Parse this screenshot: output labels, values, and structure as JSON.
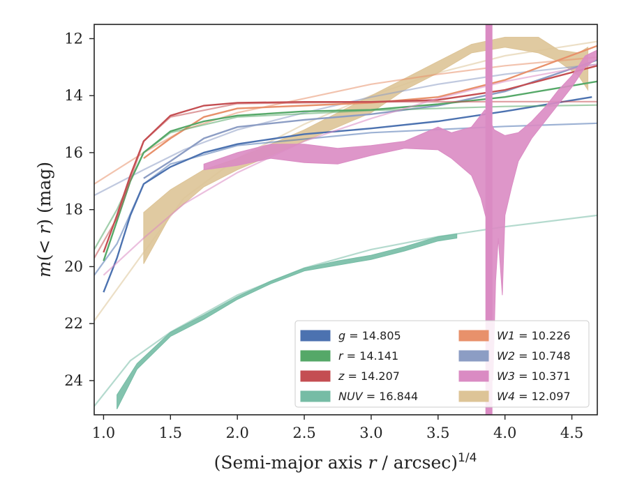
{
  "chart_data": {
    "type": "line",
    "xlabel": "(Semi-major axis r / arcsec)^{1/4}",
    "xlabel_parts": {
      "main": "(Semi-major axis ",
      "var": "r",
      "rest": " / arcsec)",
      "sup": "1/4"
    },
    "ylabel": "m(<r) (mag)",
    "ylabel_parts": {
      "var": "m",
      "mid": "(< ",
      "var2": "r",
      "rest": ") (mag)"
    },
    "xlim": [
      0.93,
      4.69
    ],
    "ylim": [
      25.2,
      11.5
    ],
    "y_inverted": true,
    "x_ticks": [
      1.0,
      1.5,
      2.0,
      2.5,
      3.0,
      3.5,
      4.0,
      4.5
    ],
    "x_tick_labels": [
      "1.0",
      "1.5",
      "2.0",
      "2.5",
      "3.0",
      "3.5",
      "4.0",
      "4.5"
    ],
    "y_ticks": [
      12,
      14,
      16,
      18,
      20,
      22,
      24
    ],
    "y_tick_labels": [
      "12",
      "14",
      "16",
      "18",
      "20",
      "22",
      "24"
    ],
    "grid": false,
    "legend_placement": "bottom-right",
    "legend": [
      {
        "band": "g",
        "value": "14.805",
        "color": "#4c72b0"
      },
      {
        "band": "W1",
        "value": "10.226",
        "color": "#e8916b"
      },
      {
        "band": "r",
        "value": "14.141",
        "color": "#55a868"
      },
      {
        "band": "W2",
        "value": "10.748",
        "color": "#8c9dc4"
      },
      {
        "band": "z",
        "value": "14.207",
        "color": "#c44e52"
      },
      {
        "band": "W3",
        "value": "10.371",
        "color": "#da8bc3"
      },
      {
        "band": "NUV",
        "value": "16.844",
        "color": "#76bca5"
      },
      {
        "band": "W4",
        "value": "12.097",
        "color": "#ddc497"
      }
    ],
    "series": [
      {
        "name": "g = 14.805",
        "color": "#4c72b0",
        "data": [
          [
            1.0,
            20.9
          ],
          [
            1.1,
            19.7
          ],
          [
            1.2,
            18.2
          ],
          [
            1.3,
            17.1
          ],
          [
            1.5,
            16.5
          ],
          [
            1.75,
            16.0
          ],
          [
            2.0,
            15.7
          ],
          [
            2.5,
            15.35
          ],
          [
            3.0,
            15.15
          ],
          [
            3.5,
            14.9
          ],
          [
            4.0,
            14.55
          ],
          [
            4.65,
            14.05
          ]
        ],
        "model": [
          [
            0.93,
            20.3
          ],
          [
            1.1,
            19.2
          ],
          [
            1.3,
            17.1
          ],
          [
            1.5,
            16.4
          ],
          [
            2.0,
            15.75
          ],
          [
            3.0,
            15.3
          ],
          [
            4.0,
            15.08
          ],
          [
            4.69,
            14.97
          ]
        ]
      },
      {
        "name": "r = 14.141",
        "color": "#55a868",
        "data": [
          [
            1.0,
            19.8
          ],
          [
            1.1,
            18.4
          ],
          [
            1.2,
            17.0
          ],
          [
            1.3,
            16.0
          ],
          [
            1.5,
            15.25
          ],
          [
            1.75,
            14.9
          ],
          [
            2.0,
            14.7
          ],
          [
            2.5,
            14.55
          ],
          [
            3.0,
            14.5
          ],
          [
            3.5,
            14.3
          ],
          [
            4.0,
            14.05
          ],
          [
            4.69,
            13.5
          ]
        ],
        "model": [
          [
            0.93,
            19.4
          ],
          [
            1.1,
            18.0
          ],
          [
            1.3,
            16.0
          ],
          [
            1.5,
            15.3
          ],
          [
            2.0,
            14.75
          ],
          [
            3.0,
            14.52
          ],
          [
            4.0,
            14.38
          ],
          [
            4.69,
            14.33
          ]
        ]
      },
      {
        "name": "z = 14.207",
        "color": "#c44e52",
        "data": [
          [
            1.0,
            19.5
          ],
          [
            1.1,
            18.2
          ],
          [
            1.2,
            16.8
          ],
          [
            1.3,
            15.6
          ],
          [
            1.5,
            14.7
          ],
          [
            1.75,
            14.35
          ],
          [
            2.0,
            14.25
          ],
          [
            2.5,
            14.22
          ],
          [
            3.0,
            14.22
          ],
          [
            3.5,
            14.15
          ],
          [
            4.0,
            13.8
          ],
          [
            4.69,
            12.95
          ]
        ],
        "model": [
          [
            0.93,
            19.7
          ],
          [
            1.1,
            18.3
          ],
          [
            1.3,
            15.6
          ],
          [
            1.5,
            14.75
          ],
          [
            2.0,
            14.28
          ],
          [
            3.0,
            14.22
          ],
          [
            4.0,
            14.21
          ],
          [
            4.69,
            14.21
          ]
        ]
      },
      {
        "name": "W1 = 10.226",
        "color": "#e8916b",
        "data": [
          [
            1.3,
            16.2
          ],
          [
            1.5,
            15.5
          ],
          [
            1.75,
            14.75
          ],
          [
            2.0,
            14.45
          ],
          [
            2.5,
            14.35
          ],
          [
            3.0,
            14.25
          ],
          [
            3.5,
            14.05
          ],
          [
            4.0,
            13.45
          ],
          [
            4.69,
            12.25
          ]
        ],
        "model": [
          [
            0.93,
            17.1
          ],
          [
            1.3,
            16.0
          ],
          [
            1.6,
            15.2
          ],
          [
            2.0,
            14.6
          ],
          [
            2.5,
            14.1
          ],
          [
            3.0,
            13.6
          ],
          [
            3.5,
            13.25
          ],
          [
            4.0,
            12.95
          ],
          [
            4.69,
            12.65
          ]
        ]
      },
      {
        "name": "W2 = 10.748",
        "color": "#8c9dc4",
        "data": [
          [
            1.3,
            16.9
          ],
          [
            1.5,
            16.3
          ],
          [
            1.75,
            15.5
          ],
          [
            2.0,
            15.1
          ],
          [
            2.5,
            14.85
          ],
          [
            3.0,
            14.65
          ],
          [
            3.5,
            14.35
          ],
          [
            4.0,
            13.85
          ],
          [
            4.69,
            12.75
          ]
        ],
        "model": [
          [
            0.93,
            17.5
          ],
          [
            1.3,
            16.6
          ],
          [
            1.6,
            15.9
          ],
          [
            2.0,
            15.2
          ],
          [
            2.5,
            14.6
          ],
          [
            3.0,
            14.05
          ],
          [
            3.5,
            13.6
          ],
          [
            4.0,
            13.25
          ],
          [
            4.69,
            12.9
          ]
        ]
      },
      {
        "name": "W3 = 10.371",
        "color": "#da8bc3",
        "band_upper": [
          [
            1.75,
            16.4
          ],
          [
            2.0,
            16.0
          ],
          [
            2.25,
            15.7
          ],
          [
            2.5,
            15.7
          ],
          [
            2.75,
            15.85
          ],
          [
            3.0,
            15.75
          ],
          [
            3.25,
            15.6
          ],
          [
            3.5,
            15.1
          ],
          [
            3.6,
            15.3
          ],
          [
            3.75,
            15.1
          ],
          [
            3.85,
            14.5
          ],
          [
            3.88,
            14.8
          ],
          [
            3.92,
            15.2
          ],
          [
            4.0,
            15.4
          ],
          [
            4.1,
            15.3
          ],
          [
            4.2,
            14.9
          ],
          [
            4.3,
            14.4
          ],
          [
            4.4,
            13.8
          ],
          [
            4.5,
            13.3
          ],
          [
            4.6,
            12.6
          ],
          [
            4.69,
            12.4
          ]
        ],
        "band_lower": [
          [
            4.69,
            12.7
          ],
          [
            4.6,
            13.0
          ],
          [
            4.5,
            13.7
          ],
          [
            4.4,
            14.3
          ],
          [
            4.3,
            14.9
          ],
          [
            4.2,
            15.5
          ],
          [
            4.1,
            16.3
          ],
          [
            4.05,
            17.2
          ],
          [
            4.0,
            18.2
          ],
          [
            3.98,
            21.0
          ],
          [
            3.95,
            19.0
          ],
          [
            3.93,
            20.5
          ],
          [
            3.91,
            24.0
          ],
          [
            3.89,
            21.5
          ],
          [
            3.87,
            18.5
          ],
          [
            3.82,
            17.6
          ],
          [
            3.75,
            16.8
          ],
          [
            3.6,
            16.2
          ],
          [
            3.5,
            15.9
          ],
          [
            3.25,
            15.85
          ],
          [
            3.0,
            16.1
          ],
          [
            2.75,
            16.4
          ],
          [
            2.5,
            16.35
          ],
          [
            2.25,
            16.2
          ],
          [
            2.0,
            16.45
          ],
          [
            1.75,
            16.6
          ]
        ],
        "spike_x": 3.88,
        "model": [
          [
            1.0,
            20.3
          ],
          [
            1.3,
            19.0
          ],
          [
            1.6,
            17.8
          ],
          [
            2.0,
            16.7
          ],
          [
            2.5,
            15.6
          ],
          [
            3.0,
            14.8
          ],
          [
            3.5,
            14.1
          ],
          [
            4.0,
            13.5
          ],
          [
            4.69,
            12.9
          ]
        ]
      },
      {
        "name": "W4 = 12.097",
        "color": "#ddc497",
        "band_upper": [
          [
            1.3,
            18.1
          ],
          [
            1.5,
            17.3
          ],
          [
            1.75,
            16.6
          ],
          [
            2.0,
            16.2
          ],
          [
            2.5,
            15.2
          ],
          [
            2.75,
            14.6
          ],
          [
            3.0,
            14.0
          ],
          [
            3.25,
            13.4
          ],
          [
            3.5,
            12.8
          ],
          [
            3.75,
            12.2
          ],
          [
            4.0,
            11.95
          ],
          [
            4.25,
            11.95
          ],
          [
            4.4,
            12.4
          ],
          [
            4.55,
            12.5
          ],
          [
            4.62,
            12.3
          ]
        ],
        "band_lower": [
          [
            4.62,
            13.8
          ],
          [
            4.55,
            13.3
          ],
          [
            4.4,
            12.8
          ],
          [
            4.25,
            12.5
          ],
          [
            4.0,
            12.3
          ],
          [
            3.75,
            12.5
          ],
          [
            3.5,
            13.2
          ],
          [
            3.25,
            13.8
          ],
          [
            3.0,
            14.6
          ],
          [
            2.75,
            15.1
          ],
          [
            2.5,
            15.6
          ],
          [
            2.0,
            16.6
          ],
          [
            1.75,
            17.2
          ],
          [
            1.5,
            18.2
          ],
          [
            1.3,
            19.9
          ]
        ],
        "model": [
          [
            0.93,
            21.9
          ],
          [
            1.3,
            19.5
          ],
          [
            1.6,
            17.6
          ],
          [
            2.0,
            16.2
          ],
          [
            2.5,
            15.0
          ],
          [
            3.0,
            14.0
          ],
          [
            3.5,
            13.2
          ],
          [
            4.0,
            12.6
          ],
          [
            4.69,
            12.1
          ]
        ]
      },
      {
        "name": "NUV = 16.844",
        "color": "#76bca5",
        "band_upper": [
          [
            1.1,
            24.5
          ],
          [
            1.25,
            23.4
          ],
          [
            1.5,
            22.3
          ],
          [
            1.75,
            21.7
          ],
          [
            2.0,
            21.05
          ],
          [
            2.25,
            20.5
          ],
          [
            2.5,
            20.05
          ],
          [
            2.75,
            19.8
          ],
          [
            3.0,
            19.6
          ],
          [
            3.25,
            19.3
          ],
          [
            3.5,
            18.95
          ],
          [
            3.64,
            18.85
          ]
        ],
        "band_lower": [
          [
            3.64,
            19.0
          ],
          [
            3.5,
            19.1
          ],
          [
            3.25,
            19.45
          ],
          [
            3.0,
            19.75
          ],
          [
            2.75,
            19.95
          ],
          [
            2.5,
            20.15
          ],
          [
            2.25,
            20.6
          ],
          [
            2.0,
            21.15
          ],
          [
            1.75,
            21.85
          ],
          [
            1.5,
            22.45
          ],
          [
            1.25,
            23.6
          ],
          [
            1.1,
            25.0
          ]
        ],
        "model": [
          [
            0.93,
            24.9
          ],
          [
            1.2,
            23.3
          ],
          [
            1.5,
            22.3
          ],
          [
            2.0,
            21.0
          ],
          [
            2.5,
            20.05
          ],
          [
            3.0,
            19.4
          ],
          [
            3.5,
            18.95
          ],
          [
            4.0,
            18.6
          ],
          [
            4.69,
            18.2
          ]
        ]
      }
    ]
  }
}
